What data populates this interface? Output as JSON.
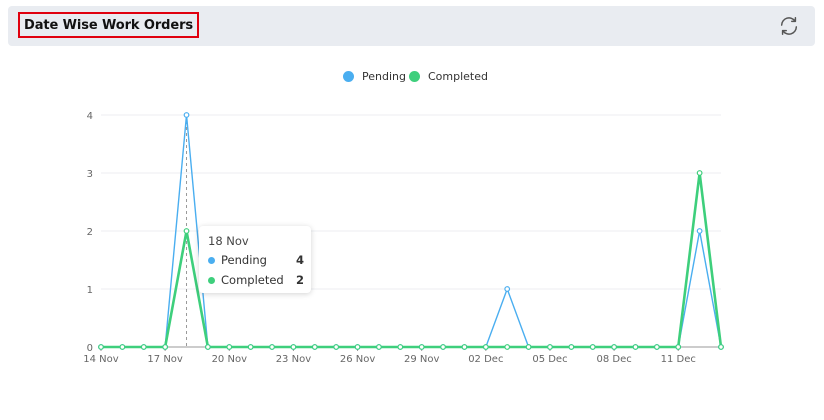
{
  "header": {
    "title": "Date Wise Work Orders",
    "refresh_icon": "refresh-icon"
  },
  "tooltip": {
    "title": "18 Nov",
    "rows": [
      {
        "label": "Pending",
        "value": "4"
      },
      {
        "label": "Completed",
        "value": "2"
      }
    ]
  },
  "colors": {
    "pending": "#4aaef0",
    "completed": "#3ecf7c",
    "highlight_border": "#e0000e",
    "header_bg": "#e9ecf1"
  },
  "chart_data": {
    "type": "line",
    "title": "",
    "xlabel": "",
    "ylabel": "",
    "ylim": [
      0,
      4
    ],
    "yticks": [
      "0",
      "1",
      "2",
      "3",
      "4"
    ],
    "x": [
      "14 Nov",
      "15 Nov",
      "16 Nov",
      "17 Nov",
      "18 Nov",
      "19 Nov",
      "20 Nov",
      "21 Nov",
      "22 Nov",
      "23 Nov",
      "24 Nov",
      "25 Nov",
      "26 Nov",
      "27 Nov",
      "28 Nov",
      "29 Nov",
      "30 Nov",
      "01 Dec",
      "02 Dec",
      "03 Dec",
      "04 Dec",
      "05 Dec",
      "06 Dec",
      "07 Dec",
      "08 Dec",
      "09 Dec",
      "10 Dec",
      "11 Dec",
      "12 Dec",
      "13 Dec"
    ],
    "xtick_labels": [
      "14 Nov",
      "17 Nov",
      "20 Nov",
      "23 Nov",
      "26 Nov",
      "29 Nov",
      "02 Dec",
      "05 Dec",
      "08 Dec",
      "11 Dec"
    ],
    "legend_position": "top-center",
    "grid": true,
    "series": [
      {
        "name": "Pending",
        "values": [
          0,
          0,
          0,
          0,
          4,
          0,
          0,
          0,
          0,
          0,
          0,
          0,
          0,
          0,
          0,
          0,
          0,
          0,
          0,
          1,
          0,
          0,
          0,
          0,
          0,
          0,
          0,
          0,
          2,
          0
        ]
      },
      {
        "name": "Completed",
        "values": [
          0,
          0,
          0,
          0,
          2,
          0,
          0,
          0,
          0,
          0,
          0,
          0,
          0,
          0,
          0,
          0,
          0,
          0,
          0,
          0,
          0,
          0,
          0,
          0,
          0,
          0,
          0,
          0,
          3,
          0
        ]
      }
    ],
    "hover_index": 4
  }
}
